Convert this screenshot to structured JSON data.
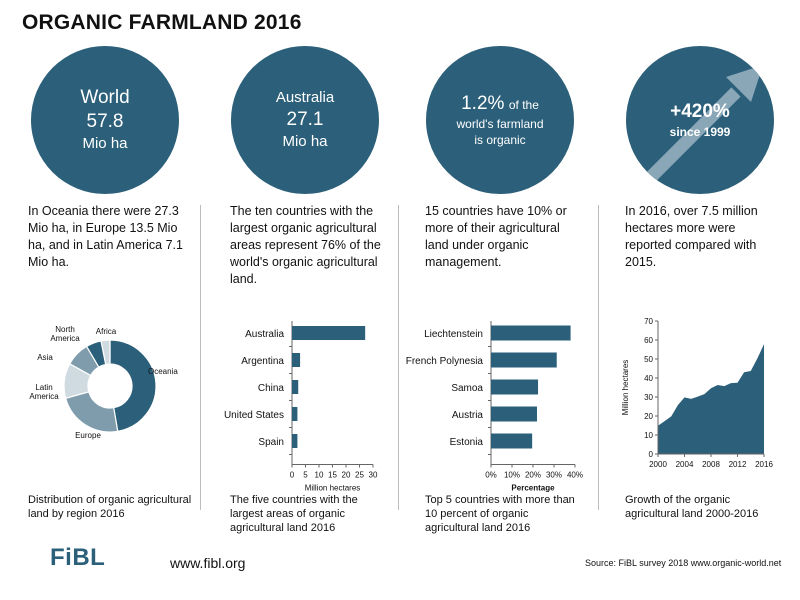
{
  "title": "ORGANIC FARMLAND 2016",
  "circles": {
    "world": {
      "line1": "World",
      "line2": "57.8",
      "line3": "Mio ha"
    },
    "australia": {
      "line1": "Australia",
      "line2": "27.1",
      "line3": "Mio ha"
    },
    "share": {
      "pct": "1.2%",
      "rest1": "of the",
      "line2": "world's farmland",
      "line3": "is organic"
    },
    "growth": {
      "line1": "+420%",
      "line2": "since 1999"
    }
  },
  "paragraphs": [
    "In Oceania there were 27.3 Mio ha, in Europe 13.5 Mio ha, and in Latin America 7.1 Mio ha.",
    "The ten countries with the largest organic agricultural areas represent 76% of the world's organic agricultural land.",
    "15 countries have 10% or more of their agricultural land under organic management.",
    "In 2016, over 7.5 million hectares more were reported compared with 2015."
  ],
  "captions": [
    "Distribution of organic agricultural land by region 2016",
    "The five countries with the largest areas of organic agricultural land 2016",
    "Top 5 countries with more than 10 percent of organic agricultural land 2016",
    "Growth of the organic agricultural land 2000-2016"
  ],
  "footer": {
    "logo": "FiBL",
    "url": "www.fibl.org",
    "source": "Source: FiBL survey 2018  www.organic-world.net"
  },
  "colors": {
    "primary": "#2b5f7a",
    "mid": "#7f9cad",
    "light": "#cfdae1"
  },
  "chart_data": [
    {
      "type": "pie",
      "categories": [
        "Oceania",
        "Europe",
        "Latin America",
        "Asia",
        "North America",
        "Africa"
      ],
      "values": [
        27.3,
        13.5,
        7.1,
        4.9,
        3.1,
        1.8
      ],
      "colors": [
        "#2b5f7a",
        "#7f9cad",
        "#cfdae1",
        "#7f9cad",
        "#2b5f7a",
        "#cfdae1"
      ],
      "donut": true
    },
    {
      "type": "bar",
      "orientation": "horizontal",
      "categories": [
        "Australia",
        "Argentina",
        "China",
        "United States",
        "Spain"
      ],
      "values": [
        27.1,
        3.0,
        2.3,
        2.0,
        2.0
      ],
      "xlabel": "Million hectares",
      "xlim": [
        0,
        30
      ],
      "xticks": [
        "0",
        "5",
        "10",
        "15",
        "20",
        "25",
        "30"
      ]
    },
    {
      "type": "bar",
      "orientation": "horizontal",
      "categories": [
        "Liechtenstein",
        "French Polynesia",
        "Samoa",
        "Austria",
        "Estonia"
      ],
      "values": [
        37.9,
        31.3,
        22.4,
        21.9,
        19.6
      ],
      "xlabel": "Percentage",
      "xlim": [
        0,
        40
      ],
      "xticks": [
        "0%",
        "10%",
        "20%",
        "30%",
        "40%"
      ]
    },
    {
      "type": "area",
      "x": [
        2000,
        2001,
        2002,
        2003,
        2004,
        2005,
        2006,
        2007,
        2008,
        2009,
        2010,
        2011,
        2012,
        2013,
        2014,
        2015,
        2016
      ],
      "values": [
        14.9,
        17.3,
        19.8,
        25.7,
        29.8,
        29.0,
        30.2,
        31.5,
        34.6,
        36.3,
        35.7,
        37.3,
        37.5,
        43.0,
        43.7,
        50.3,
        57.8
      ],
      "ylabel": "Million hectares",
      "ylim": [
        0,
        70
      ],
      "yticks": [
        "0",
        "10",
        "20",
        "30",
        "40",
        "50",
        "60",
        "70"
      ],
      "xticks": [
        "2000",
        "2004",
        "2008",
        "2012",
        "2016"
      ]
    }
  ]
}
